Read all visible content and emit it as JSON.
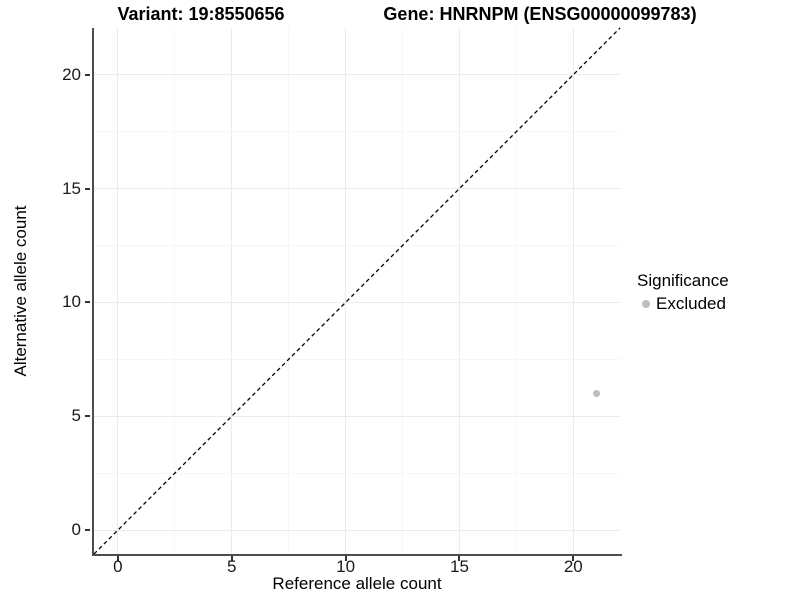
{
  "chart_data": {
    "type": "scatter",
    "title_left": "Variant: 19:8550656",
    "title_right": "Gene: HNRNPM (ENSG00000099783)",
    "xlabel": "Reference allele count",
    "ylabel": "Alternative allele count",
    "x_ticks": [
      0,
      5,
      10,
      15,
      20
    ],
    "y_ticks": [
      0,
      5,
      10,
      15,
      20
    ],
    "xlim": [
      -1.05,
      22.05
    ],
    "ylim": [
      -1.05,
      22.05
    ],
    "grid": {
      "major_step": 5,
      "minor_step": 2.5,
      "visible": true
    },
    "identity_line": {
      "slope": 1,
      "intercept": 0,
      "linetype": "dashed",
      "color": "#000000"
    },
    "series": [
      {
        "name": "Excluded",
        "color": "#bebebe",
        "points": [
          {
            "x": 21,
            "y": 6
          }
        ]
      }
    ],
    "legend": {
      "title": "Significance",
      "position": "right",
      "entries": [
        {
          "label": "Excluded",
          "color": "#bebebe",
          "marker": "circle"
        }
      ]
    }
  },
  "colors": {
    "background": "#ffffff",
    "axis_line": "#4d4d4d",
    "tick_mark": "#333333",
    "grid_major": "#ebebeb",
    "grid_minor": "#f6f6f6",
    "text": "#000000"
  }
}
